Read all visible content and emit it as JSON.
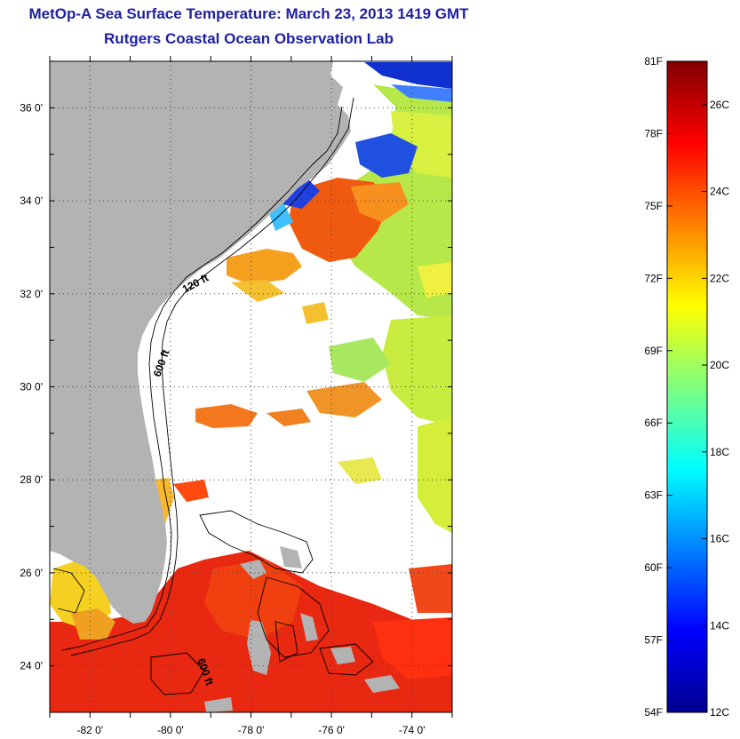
{
  "title": {
    "line1": "MetOp-A Sea Surface Temperature:  March 23, 2013 1419 GMT",
    "line2": "Rutgers Coastal Ocean Observation Lab"
  },
  "map": {
    "lat_ticks": [
      {
        "value": 36,
        "label": "36 0'"
      },
      {
        "value": 34,
        "label": "34 0'"
      },
      {
        "value": 32,
        "label": "32 0'"
      },
      {
        "value": 30,
        "label": "30 0'"
      },
      {
        "value": 28,
        "label": "28 0'"
      },
      {
        "value": 26,
        "label": "26 0'"
      },
      {
        "value": 24,
        "label": "24 0'"
      }
    ],
    "lon_ticks": [
      {
        "value": -82,
        "label": "-82 0'"
      },
      {
        "value": -80,
        "label": "-80 0'"
      },
      {
        "value": -78,
        "label": "-78 0'"
      },
      {
        "value": -76,
        "label": "-76 0'"
      },
      {
        "value": -74,
        "label": "-74 0'"
      }
    ],
    "lat_range": [
      23,
      37
    ],
    "lon_range": [
      -83,
      -73
    ],
    "contour_labels": [
      "120 ft",
      "600 ft",
      "600 ft"
    ],
    "colors": {
      "land": "#b3b3b3",
      "cloud": "#ffffff"
    }
  },
  "colorbar": {
    "f_labels": [
      "81F",
      "78F",
      "75F",
      "72F",
      "69F",
      "66F",
      "63F",
      "60F",
      "57F",
      "54F"
    ],
    "c_labels": [
      "26C",
      "24C",
      "22C",
      "20C",
      "18C",
      "16C",
      "14C",
      "12C"
    ],
    "f_range": [
      54,
      81
    ],
    "c_range": [
      12,
      27
    ]
  }
}
